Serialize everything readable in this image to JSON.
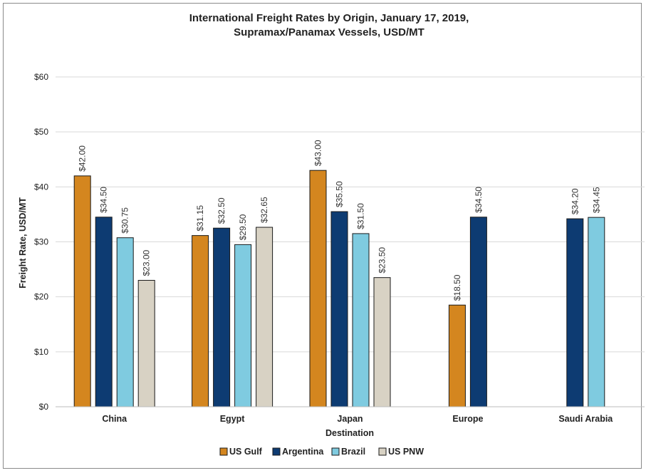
{
  "chart_data": {
    "type": "bar",
    "title_line1": "International Freight Rates by Origin, January 17, 2019,",
    "title_line2": "Supramax/Panamax Vessels, USD/MT",
    "xlabel": "Destination",
    "ylabel": "Freight Rate, USD/MT",
    "ylim": [
      0,
      60
    ],
    "yticks": [
      0,
      10,
      20,
      30,
      40,
      50,
      60
    ],
    "ytick_labels": [
      "$0",
      "$10",
      "$20",
      "$30",
      "$40",
      "$50",
      "$60"
    ],
    "categories": [
      "China",
      "Egypt",
      "Japan",
      "Europe",
      "Saudi Arabia"
    ],
    "series": [
      {
        "name": "US Gulf",
        "color": "#d4861f",
        "values": [
          42.0,
          31.15,
          43.0,
          18.5,
          null
        ],
        "labels": [
          "$42.00",
          "$31.15",
          "$43.00",
          "$18.50",
          null
        ]
      },
      {
        "name": "Argentina",
        "color": "#0d3b72",
        "values": [
          34.5,
          32.5,
          35.5,
          34.5,
          34.2
        ],
        "labels": [
          "$34.50",
          "$32.50",
          "$35.50",
          "$34.50",
          "$34.20"
        ]
      },
      {
        "name": "Brazil",
        "color": "#7fcbe0",
        "values": [
          30.75,
          29.5,
          31.5,
          null,
          34.45
        ],
        "labels": [
          "$30.75",
          "$29.50",
          "$31.50",
          null,
          "$34.45"
        ]
      },
      {
        "name": "US PNW",
        "color": "#d8d2c4",
        "values": [
          23.0,
          32.65,
          23.5,
          null,
          null
        ],
        "labels": [
          "$23.00",
          "$32.65",
          "$23.50",
          null,
          null
        ]
      }
    ],
    "grid": true,
    "legend_position": "bottom"
  }
}
